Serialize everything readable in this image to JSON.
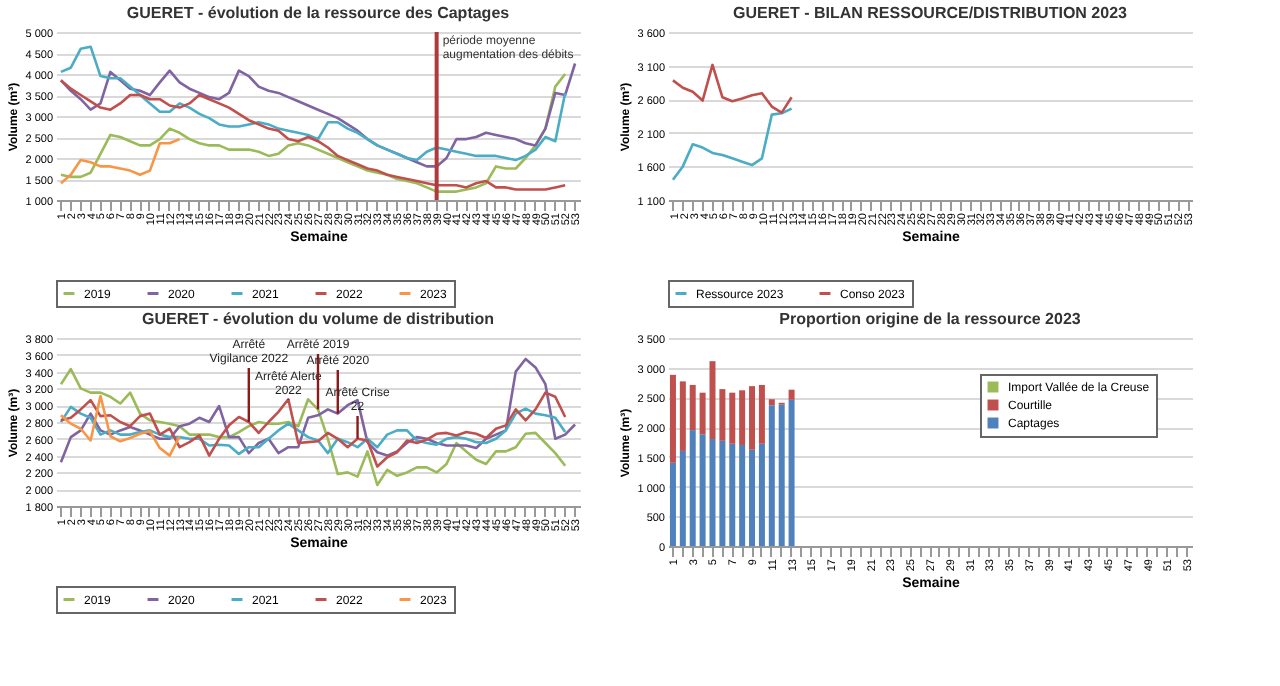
{
  "chart_data": [
    {
      "type": "line",
      "title": "GUERET - évolution de la ressource des Captages",
      "xlabel": "Semaine",
      "ylabel": "Volume (m³)",
      "grid": "y",
      "legend": "bottom",
      "categories": [
        "1",
        "2",
        "3",
        "4",
        "5",
        "6",
        "7",
        "8",
        "9",
        "10",
        "11",
        "12",
        "13",
        "14",
        "15",
        "16",
        "17",
        "18",
        "19",
        "20",
        "21",
        "22",
        "23",
        "24",
        "25",
        "26",
        "27",
        "28",
        "29",
        "30",
        "31",
        "32",
        "33",
        "34",
        "35",
        "36",
        "37",
        "38",
        "39",
        "40",
        "41",
        "42",
        "43",
        "44",
        "45",
        "46",
        "47",
        "48",
        "49",
        "50",
        "51",
        "52",
        "53"
      ],
      "ylim": [
        1000,
        5000
      ],
      "yticks": [
        {
          "value": 1000,
          "label": "1 000"
        },
        {
          "value": 1500,
          "label": "1 500"
        },
        {
          "value": 2000,
          "label": "2 000"
        },
        {
          "value": 2500,
          "label": "2 500"
        },
        {
          "value": 3000,
          "label": "3 000"
        },
        {
          "value": 3500,
          "label": "3 500"
        },
        {
          "value": 4000,
          "label": "4 000"
        },
        {
          "value": 4500,
          "label": "4 500"
        },
        {
          "value": 5000,
          "label": "5 000"
        }
      ],
      "ref_lines": [
        {
          "axis": "x",
          "value": "39",
          "label": "période moyenne augmentation des débits",
          "color": "#b03a3a"
        }
      ],
      "series": [
        {
          "name": "2019",
          "color": "#9bbb59",
          "values": [
            1600,
            1550,
            1550,
            1650,
            2100,
            2550,
            2500,
            2400,
            2300,
            2300,
            2450,
            2700,
            2600,
            2450,
            2350,
            2300,
            2300,
            2200,
            2200,
            2200,
            2150,
            2050,
            2100,
            2300,
            2350,
            2300,
            2200,
            2100,
            2000,
            1900,
            1800,
            1700,
            1650,
            1600,
            1500,
            1450,
            1400,
            1300,
            1200,
            1200,
            1200,
            1250,
            1300,
            1400,
            1800,
            1750,
            1750,
            2000,
            2300,
            2700,
            3700,
            4000,
            null
          ]
        },
        {
          "name": "2020",
          "color": "#8064a2",
          "values": [
            3850,
            3600,
            3400,
            3150,
            3300,
            4050,
            3850,
            3650,
            3600,
            3500,
            3800,
            4080,
            3800,
            3650,
            3550,
            3450,
            3400,
            3550,
            4080,
            3950,
            3700,
            3600,
            3550,
            3450,
            3350,
            3250,
            3150,
            3050,
            2950,
            2800,
            2650,
            2450,
            2300,
            2200,
            2100,
            2000,
            1900,
            1800,
            1800,
            2000,
            2450,
            2450,
            2500,
            2600,
            2550,
            2500,
            2450,
            2350,
            2300,
            2700,
            3550,
            3500,
            4250
          ]
        },
        {
          "name": "2021",
          "color": "#4bacc6",
          "values": [
            4050,
            4150,
            4600,
            4650,
            3950,
            3900,
            3900,
            3700,
            3500,
            3300,
            3100,
            3100,
            3300,
            3200,
            3050,
            2950,
            2800,
            2750,
            2750,
            2800,
            2850,
            2800,
            2700,
            2650,
            2600,
            2550,
            2450,
            2850,
            2850,
            2700,
            2600,
            2450,
            2300,
            2200,
            2100,
            2000,
            1950,
            2150,
            2250,
            2200,
            2150,
            2100,
            2050,
            2050,
            2050,
            2000,
            1950,
            2050,
            2200,
            2500,
            2400,
            3550,
            null
          ]
        },
        {
          "name": "2022",
          "color": "#c0504d",
          "values": [
            3850,
            3650,
            3500,
            3350,
            3200,
            3150,
            3300,
            3500,
            3500,
            3400,
            3400,
            3250,
            3200,
            3300,
            3500,
            3400,
            3300,
            3200,
            3050,
            2900,
            2800,
            2700,
            2650,
            2450,
            2400,
            2500,
            2400,
            2250,
            2050,
            1950,
            1850,
            1750,
            1700,
            1600,
            1550,
            1500,
            1450,
            1400,
            1350,
            1350,
            1350,
            1300,
            1400,
            1450,
            1300,
            1300,
            1250,
            1250,
            1250,
            1250,
            1300,
            1350,
            null
          ]
        },
        {
          "name": "2023",
          "color": "#f79646",
          "values": [
            1400,
            1600,
            1950,
            1900,
            1800,
            1800,
            1750,
            1700,
            1600,
            1700,
            2350,
            2350,
            2450,
            null,
            null,
            null,
            null,
            null,
            null,
            null,
            null,
            null,
            null,
            null,
            null,
            null,
            null,
            null,
            null,
            null,
            null,
            null,
            null,
            null,
            null,
            null,
            null,
            null,
            null,
            null,
            null,
            null,
            null,
            null,
            null,
            null,
            null,
            null,
            null,
            null,
            null,
            null,
            null
          ]
        }
      ]
    },
    {
      "type": "line",
      "title": "GUERET - BILAN RESSOURCE/DISTRIBUTION 2023",
      "xlabel": "Semaine",
      "ylabel": "Volume (m³)",
      "grid": "y",
      "legend": "bottom",
      "categories": [
        "1",
        "2",
        "3",
        "4",
        "5",
        "6",
        "7",
        "8",
        "9",
        "10",
        "11",
        "12",
        "13",
        "14",
        "15",
        "16",
        "17",
        "18",
        "19",
        "20",
        "21",
        "22",
        "23",
        "24",
        "25",
        "26",
        "27",
        "28",
        "29",
        "30",
        "31",
        "32",
        "33",
        "34",
        "35",
        "36",
        "37",
        "38",
        "39",
        "40",
        "41",
        "42",
        "43",
        "44",
        "45",
        "46",
        "47",
        "48",
        "49",
        "50",
        "51",
        "52",
        "53"
      ],
      "ylim": [
        1100,
        3600
      ],
      "yticks": [
        {
          "value": 1100,
          "label": "1 100"
        },
        {
          "value": 1600,
          "label": "1 600"
        },
        {
          "value": 2100,
          "label": "2 100"
        },
        {
          "value": 2600,
          "label": "2 600"
        },
        {
          "value": 3100,
          "label": "3 100"
        },
        {
          "value": 3600,
          "label": "3 600"
        }
      ],
      "series": [
        {
          "name": "Ressource 2023",
          "color": "#4bacc6",
          "values": [
            1400,
            1600,
            1930,
            1880,
            1800,
            1770,
            1720,
            1670,
            1620,
            1720,
            2370,
            2390,
            2460,
            null,
            null,
            null,
            null,
            null,
            null,
            null,
            null,
            null,
            null,
            null,
            null,
            null,
            null,
            null,
            null,
            null,
            null,
            null,
            null,
            null,
            null,
            null,
            null,
            null,
            null,
            null,
            null,
            null,
            null,
            null,
            null,
            null,
            null,
            null,
            null,
            null,
            null,
            null,
            null
          ]
        },
        {
          "name": "Conso 2023",
          "color": "#c0504d",
          "values": [
            2880,
            2770,
            2710,
            2580,
            3110,
            2630,
            2570,
            2610,
            2660,
            2690,
            2490,
            2400,
            2630,
            null,
            null,
            null,
            null,
            null,
            null,
            null,
            null,
            null,
            null,
            null,
            null,
            null,
            null,
            null,
            null,
            null,
            null,
            null,
            null,
            null,
            null,
            null,
            null,
            null,
            null,
            null,
            null,
            null,
            null,
            null,
            null,
            null,
            null,
            null,
            null,
            null,
            null,
            null,
            null
          ]
        }
      ]
    },
    {
      "type": "line",
      "title": "GUERET - évolution du volume de distribution",
      "xlabel": "Semaine",
      "ylabel": "Volume (m³)",
      "grid": "y",
      "legend": "bottom",
      "categories": [
        "1",
        "2",
        "3",
        "4",
        "5",
        "6",
        "7",
        "8",
        "9",
        "10",
        "11",
        "12",
        "13",
        "14",
        "15",
        "16",
        "17",
        "18",
        "19",
        "20",
        "21",
        "22",
        "23",
        "24",
        "25",
        "26",
        "27",
        "28",
        "29",
        "30",
        "31",
        "32",
        "33",
        "34",
        "35",
        "36",
        "37",
        "38",
        "39",
        "40",
        "41",
        "42",
        "43",
        "44",
        "45",
        "46",
        "47",
        "48",
        "49",
        "50",
        "51",
        "52",
        "53"
      ],
      "ylim": [
        1800,
        3800
      ],
      "yticks": [
        {
          "value": 1800,
          "label": "1 800"
        },
        {
          "value": 2000,
          "label": "2 000"
        },
        {
          "value": 2200,
          "label": "2 200"
        },
        {
          "value": 2400,
          "label": "2 400"
        },
        {
          "value": 2600,
          "label": "2 600"
        },
        {
          "value": 2800,
          "label": "2 800"
        },
        {
          "value": 3000,
          "label": "3 000"
        },
        {
          "value": 3200,
          "label": "3 200"
        },
        {
          "value": 3400,
          "label": "3 400"
        },
        {
          "value": 3600,
          "label": "3 600"
        },
        {
          "value": 3800,
          "label": "3 800"
        }
      ],
      "annotations": [
        {
          "text": "Arrêté Vigilance 2022",
          "x": "20",
          "y": 2800
        },
        {
          "text": "Arrêté Alerte 2022",
          "x": "24",
          "y": 3070
        },
        {
          "text": "Arrêté 2019",
          "x": "27",
          "y": 2950
        },
        {
          "text": "Arrêté 2020",
          "x": "29",
          "y": 2900
        },
        {
          "text": "Arrêté Crise 22",
          "x": "31",
          "y": 2600
        }
      ],
      "series": [
        {
          "name": "2019",
          "color": "#9bbb59",
          "values": [
            3250,
            3430,
            3200,
            3150,
            3150,
            3100,
            3020,
            3150,
            2900,
            2820,
            2800,
            2780,
            2750,
            2650,
            2650,
            2650,
            2620,
            2620,
            2680,
            2750,
            2800,
            2780,
            2780,
            2800,
            2750,
            3070,
            2950,
            2600,
            2180,
            2200,
            2150,
            2450,
            2050,
            2230,
            2160,
            2200,
            2260,
            2260,
            2200,
            2300,
            2550,
            2450,
            2350,
            2300,
            2450,
            2450,
            2500,
            2660,
            2670,
            2550,
            2430,
            2280,
            null
          ]
        },
        {
          "name": "2020",
          "color": "#8064a2",
          "values": [
            2320,
            2620,
            2700,
            2900,
            2700,
            2650,
            2700,
            2740,
            2700,
            2650,
            2600,
            2600,
            2750,
            2780,
            2850,
            2800,
            2990,
            2620,
            2620,
            2430,
            2550,
            2600,
            2430,
            2500,
            2500,
            2850,
            2880,
            2950,
            2900,
            3000,
            3060,
            2560,
            2440,
            2400,
            2450,
            2550,
            2620,
            2600,
            2550,
            2520,
            2520,
            2520,
            2490,
            2600,
            2650,
            2700,
            3400,
            3550,
            3450,
            3250,
            2600,
            2650,
            2770
          ]
        },
        {
          "name": "2021",
          "color": "#4bacc6",
          "values": [
            2800,
            2980,
            2900,
            2850,
            2650,
            2700,
            2650,
            2650,
            2680,
            2700,
            2650,
            2620,
            2620,
            2600,
            2600,
            2520,
            2530,
            2520,
            2420,
            2500,
            2500,
            2600,
            2700,
            2780,
            2700,
            2620,
            2580,
            2430,
            2600,
            2560,
            2500,
            2600,
            2500,
            2650,
            2700,
            2700,
            2580,
            2550,
            2530,
            2600,
            2620,
            2600,
            2560,
            2550,
            2600,
            2700,
            2900,
            2960,
            2900,
            2880,
            2850,
            2680,
            null
          ]
        },
        {
          "name": "2022",
          "color": "#c0504d",
          "values": [
            2820,
            2850,
            2950,
            3060,
            2870,
            2880,
            2800,
            2750,
            2870,
            2900,
            2650,
            2720,
            2500,
            2560,
            2640,
            2400,
            2600,
            2760,
            2860,
            2800,
            2670,
            2800,
            2920,
            3070,
            2550,
            2560,
            2570,
            2670,
            2600,
            2500,
            2600,
            2580,
            2270,
            2380,
            2440,
            2580,
            2550,
            2590,
            2660,
            2670,
            2640,
            2680,
            2660,
            2610,
            2720,
            2760,
            2950,
            2820,
            2950,
            3150,
            3100,
            2860,
            null
          ]
        },
        {
          "name": "2023",
          "color": "#f79646",
          "values": [
            2880,
            2780,
            2720,
            2580,
            3110,
            2630,
            2570,
            2610,
            2660,
            2690,
            2490,
            2400,
            2630,
            null,
            null,
            null,
            null,
            null,
            null,
            null,
            null,
            null,
            null,
            null,
            null,
            null,
            null,
            null,
            null,
            null,
            null,
            null,
            null,
            null,
            null,
            null,
            null,
            null,
            null,
            null,
            null,
            null,
            null,
            null,
            null,
            null,
            null,
            null,
            null,
            null,
            null,
            null,
            null
          ]
        }
      ]
    },
    {
      "type": "bar",
      "stacked": true,
      "title": "Proportion origine de la ressource 2023",
      "xlabel": "Semaine",
      "ylabel": "Volume (m³)",
      "grid": "y",
      "legend": "top right",
      "categories": [
        "1",
        null,
        "3",
        null,
        "5",
        null,
        "7",
        null,
        "9",
        null,
        "11",
        null,
        "13",
        null,
        "15",
        null,
        "17",
        null,
        "19",
        null,
        "21",
        null,
        "23",
        null,
        "25",
        null,
        "27",
        null,
        "29",
        null,
        "31",
        null,
        "33",
        null,
        "35",
        null,
        "37",
        null,
        "39",
        null,
        "41",
        null,
        "43",
        null,
        "45",
        null,
        "47",
        null,
        "49",
        null,
        "51",
        null,
        "53"
      ],
      "ylim": [
        0,
        3500
      ],
      "yticks": [
        0,
        500,
        {
          "value": 1000,
          "label": "1 000"
        },
        {
          "value": 1500,
          "label": "1 500"
        },
        {
          "value": 2000,
          "label": "2 000"
        },
        {
          "value": 2500,
          "label": "2 500"
        },
        {
          "value": 3000,
          "label": "3 000"
        },
        {
          "value": 3500,
          "label": "3 500"
        }
      ],
      "series": [
        {
          "name": "Captages",
          "color": "#4f81bd",
          "values": [
            1400,
            1600,
            1950,
            1880,
            1800,
            1770,
            1720,
            1700,
            1620,
            1720,
            2370,
            2380,
            2460,
            null,
            null,
            null,
            null,
            null,
            null,
            null,
            null,
            null,
            null,
            null,
            null,
            null,
            null,
            null,
            null,
            null,
            null,
            null,
            null,
            null,
            null,
            null,
            null,
            null,
            null,
            null,
            null,
            null,
            null,
            null,
            null,
            null,
            null,
            null,
            null,
            null,
            null,
            null,
            null
          ]
        },
        {
          "name": "Courtille",
          "color": "#c0504d",
          "values": [
            1480,
            1170,
            760,
            700,
            1310,
            870,
            860,
            920,
            1070,
            990,
            100,
            30,
            170,
            null,
            null,
            null,
            null,
            null,
            null,
            null,
            null,
            null,
            null,
            null,
            null,
            null,
            null,
            null,
            null,
            null,
            null,
            null,
            null,
            null,
            null,
            null,
            null,
            null,
            null,
            null,
            null,
            null,
            null,
            null,
            null,
            null,
            null,
            null,
            null,
            null,
            null,
            null,
            null
          ]
        },
        {
          "name": "Import Vallée de la Creuse",
          "color": "#9bbb59",
          "values": [
            null,
            null,
            null,
            null,
            null,
            null,
            null,
            null,
            null,
            null,
            null,
            null,
            null,
            null,
            null,
            null,
            null,
            null,
            null,
            null,
            null,
            null,
            null,
            null,
            null,
            null,
            null,
            null,
            null,
            null,
            null,
            null,
            null,
            null,
            null,
            null,
            null,
            null,
            null,
            null,
            null,
            null,
            null,
            null,
            null,
            null,
            null,
            null,
            null,
            null,
            null,
            null,
            null
          ]
        }
      ]
    }
  ]
}
